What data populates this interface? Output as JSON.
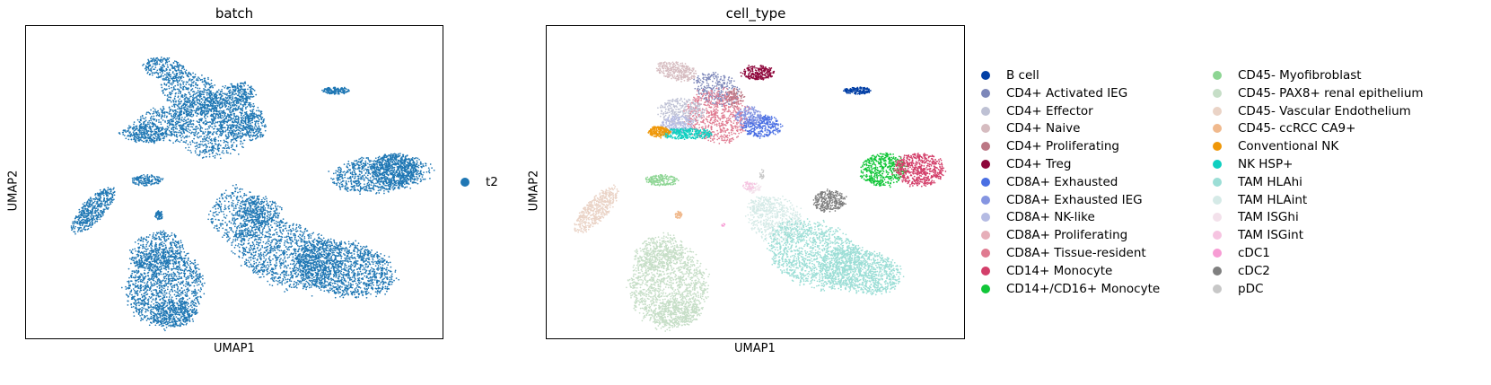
{
  "chart_data": [
    {
      "type": "scatter",
      "title": "batch",
      "xlabel": "UMAP1",
      "ylabel": "UMAP2",
      "ticks": "hidden",
      "legend": {
        "placement": "right",
        "entries": [
          {
            "label": "t2",
            "color": "#1f77b4"
          }
        ]
      }
    },
    {
      "type": "scatter",
      "title": "cell_type",
      "xlabel": "UMAP1",
      "ylabel": "UMAP2",
      "ticks": "hidden",
      "legend": {
        "placement": "right",
        "columns": 2,
        "entries": [
          {
            "label": "B cell",
            "color": "#023fa5"
          },
          {
            "label": "CD4+ Activated IEG",
            "color": "#7d87b9"
          },
          {
            "label": "CD4+ Effector",
            "color": "#bec1d4"
          },
          {
            "label": "CD4+ Naive",
            "color": "#d6bcc0"
          },
          {
            "label": "CD4+ Proliferating",
            "color": "#bb7784"
          },
          {
            "label": "CD4+ Treg",
            "color": "#8e063b"
          },
          {
            "label": "CD8A+ Exhausted",
            "color": "#4a6fe3"
          },
          {
            "label": "CD8A+ Exhausted IEG",
            "color": "#8595e1"
          },
          {
            "label": "CD8A+ NK-like",
            "color": "#b5bbe3"
          },
          {
            "label": "CD8A+ Proliferating",
            "color": "#e6afb9"
          },
          {
            "label": "CD8A+ Tissue-resident",
            "color": "#e07b91"
          },
          {
            "label": "CD14+ Monocyte",
            "color": "#d33f6a"
          },
          {
            "label": "CD14+/CD16+ Monocyte",
            "color": "#11c638"
          },
          {
            "label": "CD45- Myofibroblast",
            "color": "#8dd593"
          },
          {
            "label": "CD45- PAX8+ renal epithelium",
            "color": "#c6dec7"
          },
          {
            "label": "CD45- Vascular Endothelium",
            "color": "#ead3c6"
          },
          {
            "label": "CD45- ccRCC CA9+",
            "color": "#f0b98d"
          },
          {
            "label": "Conventional NK",
            "color": "#ef9708"
          },
          {
            "label": "NK HSP+",
            "color": "#0fcfc0"
          },
          {
            "label": "TAM HLAhi",
            "color": "#9cded6"
          },
          {
            "label": "TAM HLAint",
            "color": "#d5eae7"
          },
          {
            "label": "TAM ISGhi",
            "color": "#f3e1eb"
          },
          {
            "label": "TAM ISGint",
            "color": "#f6c4e1"
          },
          {
            "label": "cDC1",
            "color": "#f79cd4"
          },
          {
            "label": "cDC2",
            "color": "#7f7f7f"
          },
          {
            "label": "pDC",
            "color": "#c7c7c7"
          }
        ]
      }
    }
  ]
}
